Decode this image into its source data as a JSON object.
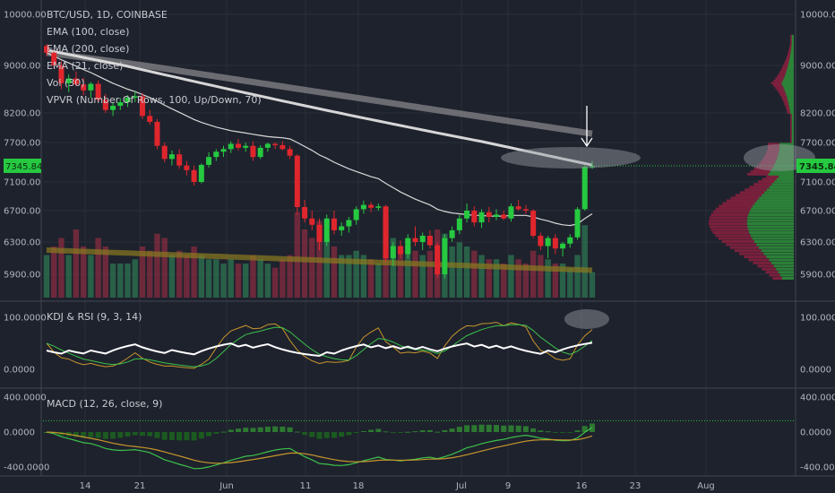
{
  "chart_data": {
    "type": "candlestick",
    "symbol_line": "BTC/USD, 1D, COINBASE",
    "studies": [
      "EMA (100, close)",
      "EMA (200, close)",
      "EMA (21, close)",
      "Vol (30)",
      "VPVR (Number Of Rows, 100, Up/Down, 70)"
    ],
    "price_axis": {
      "ticks": [
        5900,
        6300,
        6700,
        7100,
        7700,
        8200,
        9000,
        10000
      ],
      "tick_labels": [
        "5900.00",
        "6300.00",
        "6700.00",
        "7100.00",
        "7700.00",
        "8200.00",
        "9000.00",
        "10000.00"
      ],
      "last_price": "7345.84",
      "last_price_value": 7345.84
    },
    "x_labels": [
      "14",
      "21",
      "Jun",
      "11",
      "18",
      "Jul",
      "9",
      "16",
      "23",
      "Aug"
    ],
    "candles_ohlc": [
      [
        9380,
        9420,
        9180,
        9250
      ],
      [
        9250,
        9300,
        8950,
        9000
      ],
      [
        9000,
        9080,
        8600,
        8700
      ],
      [
        8700,
        8850,
        8550,
        8780
      ],
      [
        8780,
        8900,
        8650,
        8680
      ],
      [
        8680,
        8790,
        8500,
        8580
      ],
      [
        8580,
        8720,
        8450,
        8690
      ],
      [
        8690,
        8750,
        8380,
        8420
      ],
      [
        8420,
        8520,
        8200,
        8250
      ],
      [
        8250,
        8380,
        8150,
        8320
      ],
      [
        8320,
        8450,
        8250,
        8380
      ],
      [
        8380,
        8500,
        8300,
        8460
      ],
      [
        8460,
        8560,
        8380,
        8480
      ],
      [
        8480,
        8540,
        8100,
        8150
      ],
      [
        8150,
        8250,
        8000,
        8050
      ],
      [
        8050,
        8100,
        7600,
        7650
      ],
      [
        7650,
        7700,
        7400,
        7450
      ],
      [
        7450,
        7580,
        7350,
        7520
      ],
      [
        7520,
        7600,
        7300,
        7350
      ],
      [
        7350,
        7420,
        7200,
        7280
      ],
      [
        7280,
        7350,
        7050,
        7100
      ],
      [
        7100,
        7380,
        7080,
        7360
      ],
      [
        7360,
        7550,
        7320,
        7480
      ],
      [
        7480,
        7600,
        7420,
        7560
      ],
      [
        7560,
        7650,
        7480,
        7600
      ],
      [
        7600,
        7720,
        7540,
        7680
      ],
      [
        7680,
        7760,
        7580,
        7620
      ],
      [
        7620,
        7700,
        7560,
        7650
      ],
      [
        7650,
        7720,
        7420,
        7480
      ],
      [
        7480,
        7660,
        7450,
        7620
      ],
      [
        7620,
        7700,
        7560,
        7680
      ],
      [
        7680,
        7700,
        7600,
        7660
      ],
      [
        7660,
        7720,
        7580,
        7600
      ],
      [
        7600,
        7650,
        7450,
        7500
      ],
      [
        7500,
        7520,
        6650,
        6750
      ],
      [
        6750,
        6850,
        6550,
        6600
      ],
      [
        6600,
        6700,
        6450,
        6520
      ],
      [
        6520,
        6600,
        6200,
        6300
      ],
      [
        6300,
        6650,
        6250,
        6600
      ],
      [
        6600,
        6700,
        6400,
        6450
      ],
      [
        6450,
        6550,
        6380,
        6500
      ],
      [
        6500,
        6620,
        6420,
        6580
      ],
      [
        6580,
        6760,
        6520,
        6720
      ],
      [
        6720,
        6840,
        6660,
        6780
      ],
      [
        6780,
        6820,
        6680,
        6740
      ],
      [
        6740,
        6800,
        6700,
        6760
      ],
      [
        6760,
        6780,
        6050,
        6100
      ],
      [
        6100,
        6300,
        6000,
        6250
      ],
      [
        6250,
        6320,
        6100,
        6150
      ],
      [
        6150,
        6400,
        6100,
        6350
      ],
      [
        6350,
        6500,
        6250,
        6300
      ],
      [
        6300,
        6420,
        6200,
        6380
      ],
      [
        6380,
        6450,
        6220,
        6260
      ],
      [
        6260,
        6300,
        5850,
        5900
      ],
      [
        5900,
        6400,
        5850,
        6350
      ],
      [
        6350,
        6500,
        6300,
        6450
      ],
      [
        6450,
        6650,
        6400,
        6600
      ],
      [
        6600,
        6800,
        6550,
        6700
      ],
      [
        6700,
        6760,
        6500,
        6550
      ],
      [
        6550,
        6720,
        6480,
        6680
      ],
      [
        6680,
        6750,
        6550,
        6620
      ],
      [
        6620,
        6720,
        6580,
        6650
      ],
      [
        6650,
        6700,
        6580,
        6600
      ],
      [
        6600,
        6800,
        6560,
        6760
      ],
      [
        6760,
        6850,
        6700,
        6720
      ],
      [
        6720,
        6780,
        6660,
        6700
      ],
      [
        6700,
        6720,
        6350,
        6380
      ],
      [
        6380,
        6420,
        6200,
        6250
      ],
      [
        6250,
        6380,
        6100,
        6350
      ],
      [
        6350,
        6400,
        6150,
        6220
      ],
      [
        6220,
        6300,
        6120,
        6280
      ],
      [
        6280,
        6400,
        6230,
        6360
      ],
      [
        6360,
        6750,
        6330,
        6720
      ],
      [
        6720,
        7350,
        6700,
        7330
      ],
      [
        7330,
        7420,
        7300,
        7345.84
      ]
    ],
    "volume_up": [
      true,
      false,
      false,
      true,
      false,
      false,
      true,
      false,
      false,
      true,
      true,
      true,
      true,
      false,
      false,
      false,
      false,
      true,
      false,
      false,
      false,
      true,
      true,
      true,
      true,
      true,
      false,
      true,
      false,
      true,
      true,
      false,
      false,
      false,
      false,
      false,
      false,
      false,
      true,
      false,
      true,
      true,
      true,
      true,
      false,
      true,
      false,
      true,
      false,
      true,
      false,
      true,
      false,
      false,
      true,
      true,
      true,
      true,
      false,
      true,
      false,
      true,
      false,
      true,
      false,
      false,
      false,
      false,
      true,
      false,
      true,
      true,
      true,
      true,
      true
    ],
    "volume_rel": [
      0.5,
      0.6,
      0.7,
      0.5,
      0.8,
      0.6,
      0.5,
      0.7,
      0.6,
      0.4,
      0.4,
      0.4,
      0.45,
      0.6,
      0.55,
      0.75,
      0.7,
      0.5,
      0.55,
      0.5,
      0.6,
      0.5,
      0.45,
      0.45,
      0.4,
      0.45,
      0.4,
      0.4,
      0.5,
      0.45,
      0.4,
      0.35,
      0.45,
      0.5,
      1.0,
      0.8,
      0.7,
      0.9,
      0.7,
      0.6,
      0.5,
      0.5,
      0.55,
      0.5,
      0.45,
      0.4,
      0.95,
      0.7,
      0.6,
      0.6,
      0.55,
      0.5,
      0.55,
      0.8,
      0.75,
      0.6,
      0.65,
      0.6,
      0.55,
      0.5,
      0.45,
      0.45,
      0.4,
      0.5,
      0.45,
      0.4,
      0.55,
      0.5,
      0.45,
      0.4,
      0.4,
      0.35,
      0.5,
      0.85,
      0.3
    ],
    "ema21": [
      9250,
      9180,
      9110,
      9050,
      8990,
      8930,
      8880,
      8820,
      8760,
      8700,
      8650,
      8600,
      8560,
      8510,
      8460,
      8400,
      8330,
      8270,
      8210,
      8150,
      8090,
      8040,
      8000,
      7960,
      7930,
      7900,
      7880,
      7860,
      7840,
      7820,
      7800,
      7790,
      7780,
      7760,
      7700,
      7640,
      7580,
      7510,
      7460,
      7400,
      7350,
      7300,
      7260,
      7220,
      7180,
      7150,
      7080,
      7020,
      6960,
      6910,
      6860,
      6820,
      6780,
      6720,
      6690,
      6670,
      6660,
      6650,
      6640,
      6640,
      6630,
      6630,
      6630,
      6640,
      6640,
      6640,
      6620,
      6590,
      6570,
      6540,
      6520,
      6510,
      6530,
      6600,
      6660
    ],
    "ema100_range": [
      9300,
      7360
    ],
    "ema200_range": [
      9250,
      7850
    ],
    "ema_long_range": [
      6200,
      5950
    ],
    "kdj_rsi": {
      "label": "KDJ & RSI (9, 3, 14)",
      "ticks": [
        100,
        0
      ],
      "tick_labels": [
        "100.0000",
        "0.0000"
      ]
    },
    "macd": {
      "label": "MACD (12, 26, close, 9)",
      "ticks": [
        400,
        0,
        -400
      ],
      "tick_labels": [
        "400.0000",
        "0.0000",
        "-400.0000"
      ]
    },
    "colors": {
      "background": "#1e222d",
      "up": "#26c940",
      "down": "#e0262d",
      "ema100": "#e0e0e0",
      "ema200": "#9e9e9e",
      "ema21": "#d9d9d9",
      "ema_long": "#8a7a20",
      "kdj_k": "#c8962c",
      "kdj_d": "#3cc24a",
      "rsi": "#ffffff",
      "macd_line": "#c8962c",
      "signal_line": "#3cc24a",
      "hist_up": "#2e7d32",
      "hist_down": "#1b5e20"
    }
  }
}
